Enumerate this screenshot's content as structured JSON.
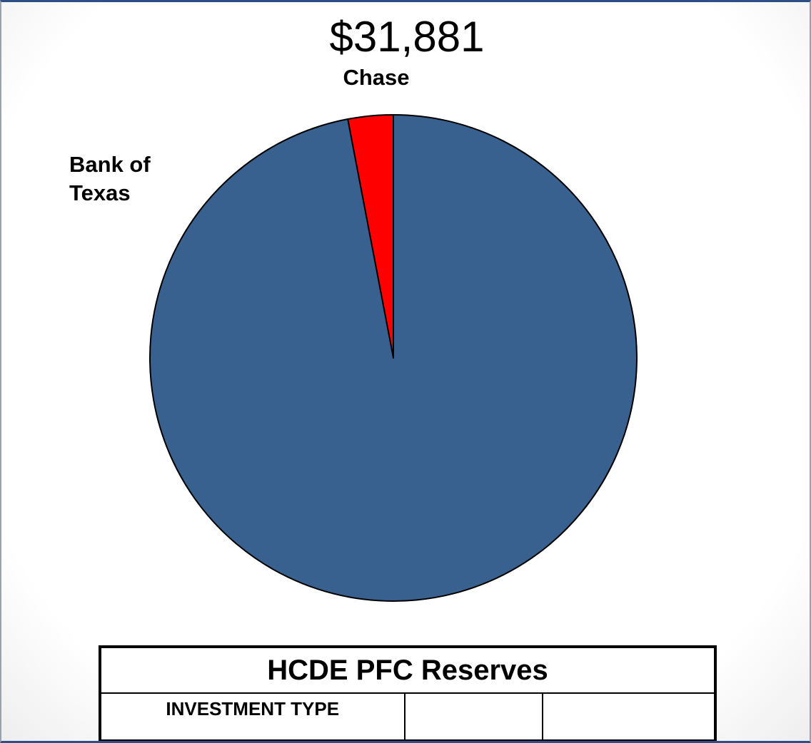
{
  "chart_data": {
    "type": "pie",
    "title": "$31,881",
    "slices": [
      {
        "label": "Chase",
        "value": 3,
        "color": "#ff0000"
      },
      {
        "label": "Bank of Texas",
        "value": 97,
        "color": "#386190"
      }
    ]
  },
  "table": {
    "title": "HCDE PFC Reserves",
    "headers": [
      "INVESTMENT TYPE",
      "",
      ""
    ]
  }
}
